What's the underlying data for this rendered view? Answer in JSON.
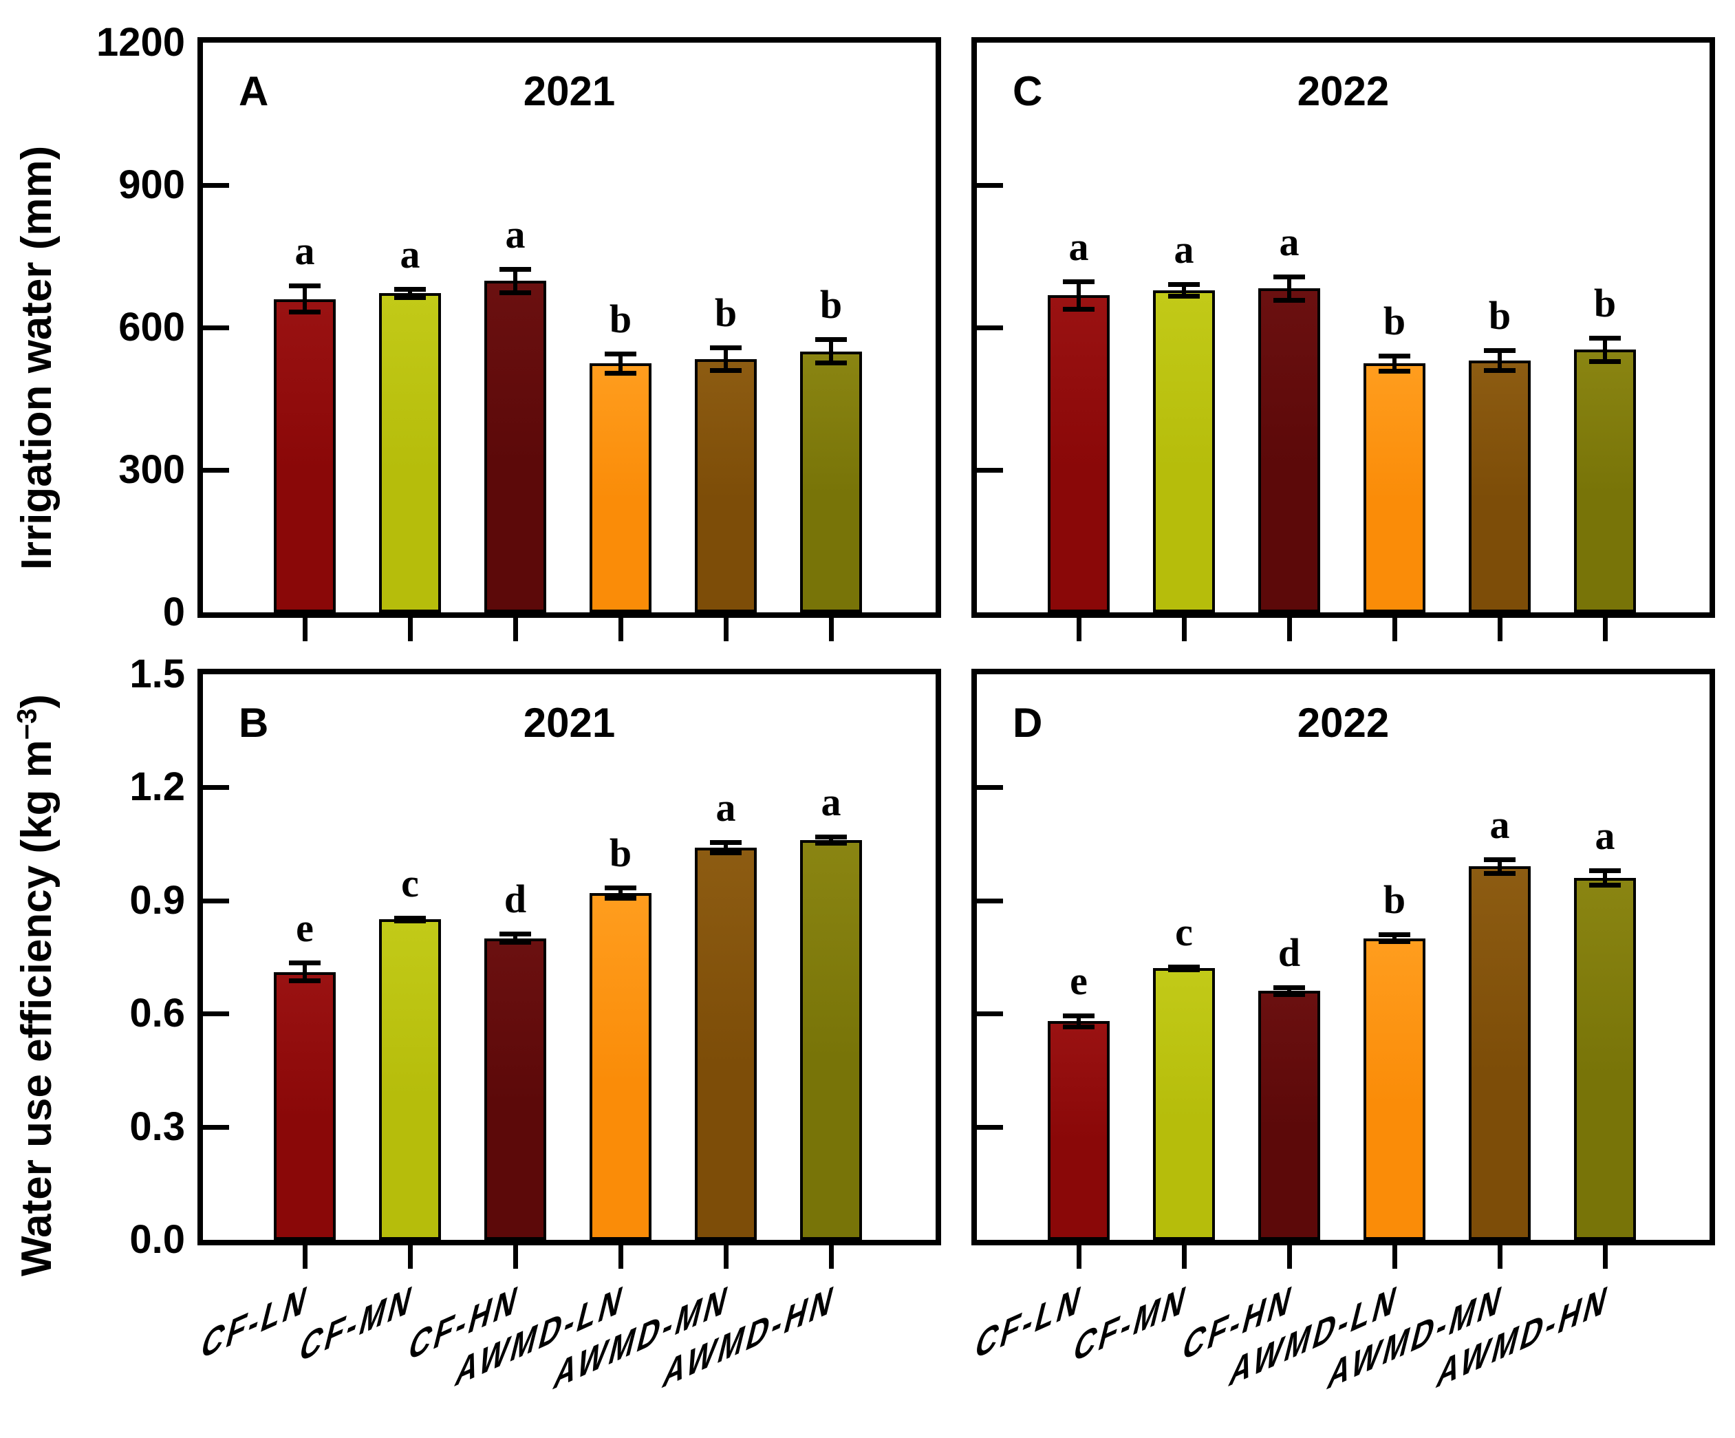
{
  "axes": {
    "top_row": {
      "label": "Irrigation water (mm)"
    },
    "bottom_row": {
      "label_prefix": "Water use efficiency (kg m",
      "label_sup": "−3",
      "label_suffix": ")"
    }
  },
  "categories": [
    "CF-LN",
    "CF-MN",
    "CF-HN",
    "AWMD-LN",
    "AWMD-MN",
    "AWMD-HN"
  ],
  "series_colors": [
    "#8a0808",
    "#b6bd0b",
    "#5c0909",
    "#fa8c08",
    "#7d4d08",
    "#787408"
  ],
  "series_colors_light": [
    "#9a1212",
    "#c2ca18",
    "#6b1010",
    "#ff9d1e",
    "#8d5c12",
    "#8a8512"
  ],
  "bar_outline_color": "#000000",
  "chart_data": [
    {
      "type": "bar",
      "panel_letter": "A",
      "title": "2021",
      "position": "top-left",
      "ylabel": "Irrigation water (mm)",
      "ylim": [
        0,
        1200
      ],
      "yticks_inner": [
        300,
        600,
        900
      ],
      "ytick_labels": [
        {
          "value": 1200,
          "label": "1200"
        },
        {
          "value": 900,
          "label": "900"
        },
        {
          "value": 600,
          "label": "600"
        },
        {
          "value": 300,
          "label": "300"
        },
        {
          "value": 0,
          "label": "0"
        }
      ],
      "show_ytick_labels": true,
      "show_xlabels": false,
      "categories": [
        "CF-LN",
        "CF-MN",
        "CF-HN",
        "AWMD-LN",
        "AWMD-MN",
        "AWMD-HN"
      ],
      "values": [
        660,
        672,
        698,
        524,
        534,
        550
      ],
      "errors": [
        33,
        14,
        30,
        26,
        29,
        30
      ],
      "letters": [
        "a",
        "a",
        "a",
        "b",
        "b",
        "b"
      ]
    },
    {
      "type": "bar",
      "panel_letter": "C",
      "title": "2022",
      "position": "top-right",
      "ylabel": "Irrigation water (mm)",
      "ylim": [
        0,
        1200
      ],
      "yticks_inner": [
        300,
        600,
        900
      ],
      "ytick_labels": [],
      "show_ytick_labels": false,
      "show_xlabels": false,
      "categories": [
        "CF-LN",
        "CF-MN",
        "CF-HN",
        "AWMD-LN",
        "AWMD-MN",
        "AWMD-HN"
      ],
      "values": [
        668,
        678,
        682,
        524,
        531,
        553
      ],
      "errors": [
        34,
        17,
        30,
        21,
        26,
        30
      ],
      "letters": [
        "a",
        "a",
        "a",
        "b",
        "b",
        "b"
      ]
    },
    {
      "type": "bar",
      "panel_letter": "B",
      "title": "2021",
      "position": "bottom-left",
      "ylabel": "Water use efficiency (kg m−3)",
      "ylim": [
        0,
        1.5
      ],
      "yticks_inner": [
        0.3,
        0.6,
        0.9,
        1.2
      ],
      "ytick_labels": [
        {
          "value": 1.5,
          "label": "1.5"
        },
        {
          "value": 1.2,
          "label": "1.2"
        },
        {
          "value": 0.9,
          "label": "0.9"
        },
        {
          "value": 0.6,
          "label": "0.6"
        },
        {
          "value": 0.3,
          "label": "0.3"
        },
        {
          "value": 0,
          "label": "0.0"
        }
      ],
      "show_ytick_labels": true,
      "show_xlabels": true,
      "categories": [
        "CF-LN",
        "CF-MN",
        "CF-HN",
        "AWMD-LN",
        "AWMD-MN",
        "AWMD-HN"
      ],
      "values": [
        0.71,
        0.85,
        0.8,
        0.92,
        1.04,
        1.06
      ],
      "errors": [
        0.03,
        0.01,
        0.018,
        0.02,
        0.02,
        0.015
      ],
      "letters": [
        "e",
        "c",
        "d",
        "b",
        "a",
        "a"
      ]
    },
    {
      "type": "bar",
      "panel_letter": "D",
      "title": "2022",
      "position": "bottom-right",
      "ylabel": "Water use efficiency (kg m−3)",
      "ylim": [
        0,
        1.5
      ],
      "yticks_inner": [
        0.3,
        0.6,
        0.9,
        1.2
      ],
      "ytick_labels": [],
      "show_ytick_labels": false,
      "show_xlabels": true,
      "categories": [
        "CF-LN",
        "CF-MN",
        "CF-HN",
        "AWMD-LN",
        "AWMD-MN",
        "AWMD-HN"
      ],
      "values": [
        0.58,
        0.72,
        0.66,
        0.8,
        0.99,
        0.96
      ],
      "errors": [
        0.021,
        0.01,
        0.015,
        0.015,
        0.025,
        0.026
      ],
      "letters": [
        "e",
        "c",
        "d",
        "b",
        "a",
        "a"
      ]
    }
  ]
}
